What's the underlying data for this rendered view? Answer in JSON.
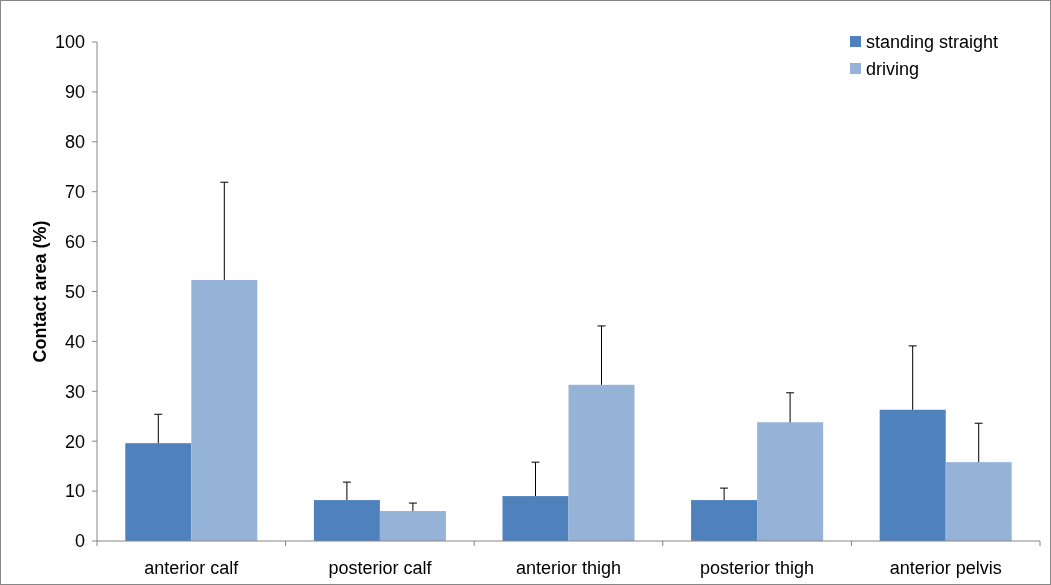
{
  "chart_data": {
    "type": "bar",
    "ylabel": "Contact area (%)",
    "categories": [
      "anterior calf",
      "posterior calf",
      "anterior thigh",
      "posterior thigh",
      "anterior pelvis"
    ],
    "series": [
      {
        "name": "standing straight",
        "color": "#4f81bd",
        "values": [
          19.6,
          8.2,
          9.0,
          8.2,
          26.3
        ],
        "errors": [
          [
            19.6,
            25.4
          ],
          [
            8.2,
            11.8
          ],
          [
            9.0,
            15.8
          ],
          [
            8.2,
            10.6
          ],
          [
            26.3,
            39.1
          ]
        ]
      },
      {
        "name": "driving",
        "color": "#95b3d7",
        "values": [
          52.3,
          6.0,
          31.3,
          23.8,
          15.8
        ],
        "errors": [
          [
            52.3,
            71.9
          ],
          [
            6.0,
            7.6
          ],
          [
            31.3,
            43.1
          ],
          [
            23.8,
            29.7
          ],
          [
            15.8,
            23.6
          ]
        ]
      }
    ],
    "ylim": [
      0,
      100
    ],
    "yticks": [
      0,
      10,
      20,
      30,
      40,
      50,
      60,
      70,
      80,
      90,
      100
    ],
    "legend": "top right"
  }
}
